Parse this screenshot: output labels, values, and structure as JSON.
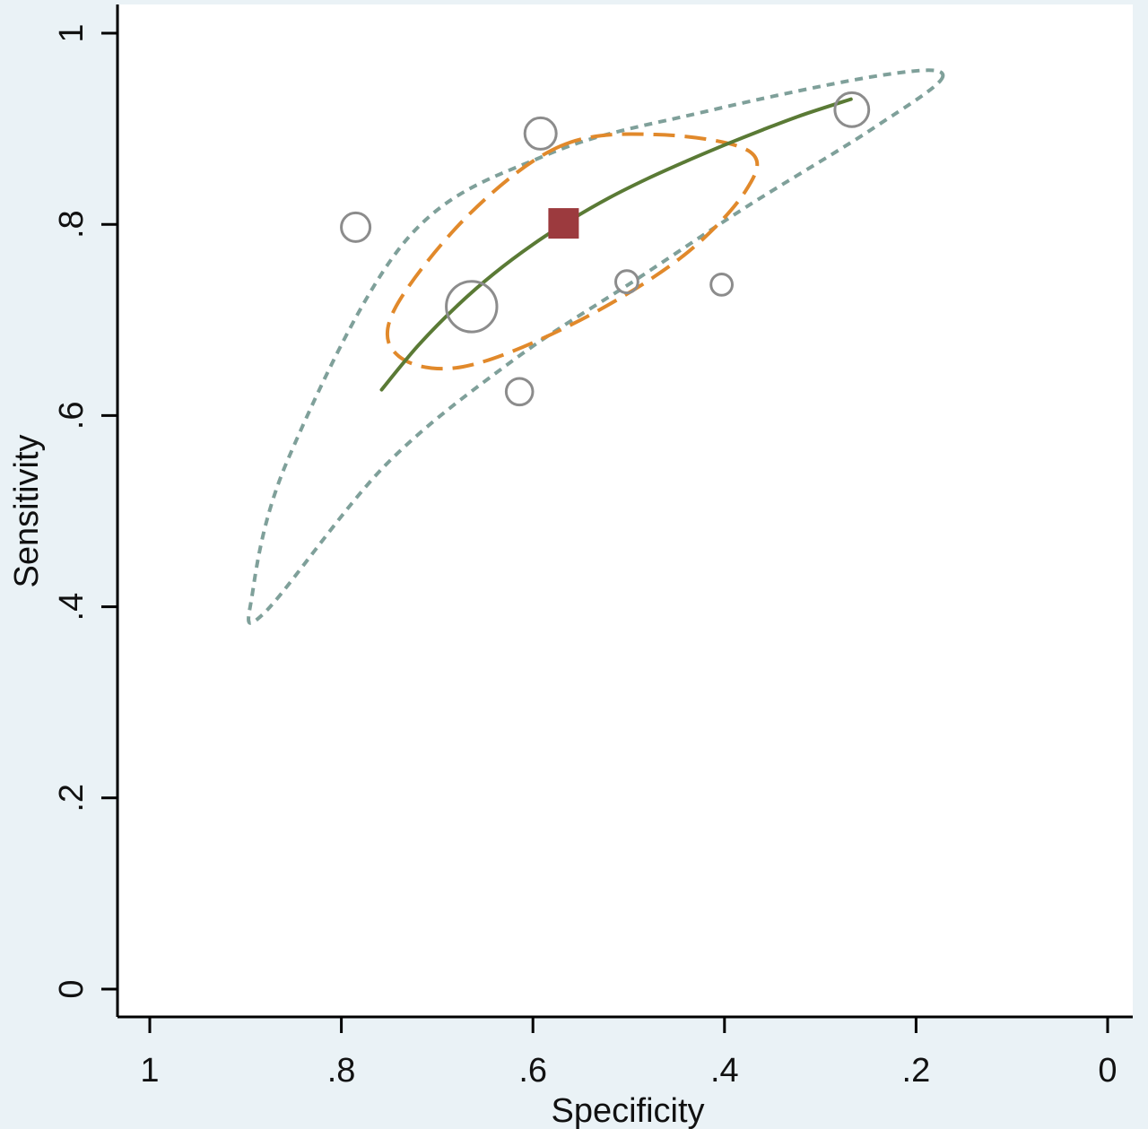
{
  "chart_data": {
    "type": "scatter",
    "title": "",
    "xlabel": "Specificity",
    "ylabel": "Sensitivity",
    "x_reversed": true,
    "xlim": [
      1,
      0
    ],
    "ylim": [
      0,
      1
    ],
    "x_ticks": [
      1,
      0.8,
      0.6,
      0.4,
      0.2,
      0
    ],
    "x_tick_labels": [
      "1",
      ".8",
      ".6",
      ".4",
      ".2",
      "0"
    ],
    "y_ticks": [
      0,
      0.2,
      0.4,
      0.6,
      0.8,
      1
    ],
    "y_tick_labels": [
      "0",
      ".2",
      ".4",
      ".6",
      ".8",
      "1"
    ],
    "grid": false,
    "legend": "none",
    "studies": [
      {
        "specificity": 0.785,
        "sensitivity": 0.797,
        "weight": 1.0
      },
      {
        "specificity": 0.592,
        "sensitivity": 0.895,
        "weight": 1.2
      },
      {
        "specificity": 0.664,
        "sensitivity": 0.714,
        "weight": 3.1
      },
      {
        "specificity": 0.502,
        "sensitivity": 0.74,
        "weight": 0.6
      },
      {
        "specificity": 0.403,
        "sensitivity": 0.737,
        "weight": 0.55
      },
      {
        "specificity": 0.614,
        "sensitivity": 0.625,
        "weight": 0.85
      },
      {
        "specificity": 0.267,
        "sensitivity": 0.92,
        "weight": 1.4
      }
    ],
    "summary_point": {
      "specificity": 0.568,
      "sensitivity": 0.801
    },
    "sroc_curve": {
      "specificity": [
        0.758,
        0.72,
        0.68,
        0.64,
        0.6,
        0.56,
        0.52,
        0.48,
        0.44,
        0.4,
        0.36,
        0.32,
        0.268
      ],
      "sensitivity": [
        0.627,
        0.673,
        0.714,
        0.749,
        0.779,
        0.805,
        0.828,
        0.848,
        0.866,
        0.883,
        0.899,
        0.914,
        0.931
      ]
    },
    "confidence_region": {
      "specificity": [
        0.571,
        0.472,
        0.375,
        0.378,
        0.447,
        0.56,
        0.673,
        0.74,
        0.745,
        0.667,
        0.571
      ],
      "sensitivity": [
        0.882,
        0.894,
        0.877,
        0.835,
        0.764,
        0.695,
        0.651,
        0.662,
        0.71,
        0.81,
        0.882
      ]
    },
    "prediction_region": {
      "specificity": [
        0.172,
        0.244,
        0.376,
        0.488,
        0.619,
        0.754,
        0.88,
        0.893,
        0.855,
        0.732,
        0.585,
        0.42,
        0.236,
        0.172
      ],
      "sensitivity": [
        0.955,
        0.901,
        0.819,
        0.745,
        0.659,
        0.548,
        0.394,
        0.413,
        0.556,
        0.784,
        0.873,
        0.918,
        0.956,
        0.955
      ]
    },
    "colors": {
      "background": "#eaf2f6",
      "plot_area": "#ffffff",
      "axis": "#000000",
      "study_circle": "#8c8c8c",
      "summary_point": "#9c3a3e",
      "sroc_curve": "#5a7a35",
      "confidence_region": "#e1892b",
      "prediction_region": "#7fa09a"
    }
  }
}
